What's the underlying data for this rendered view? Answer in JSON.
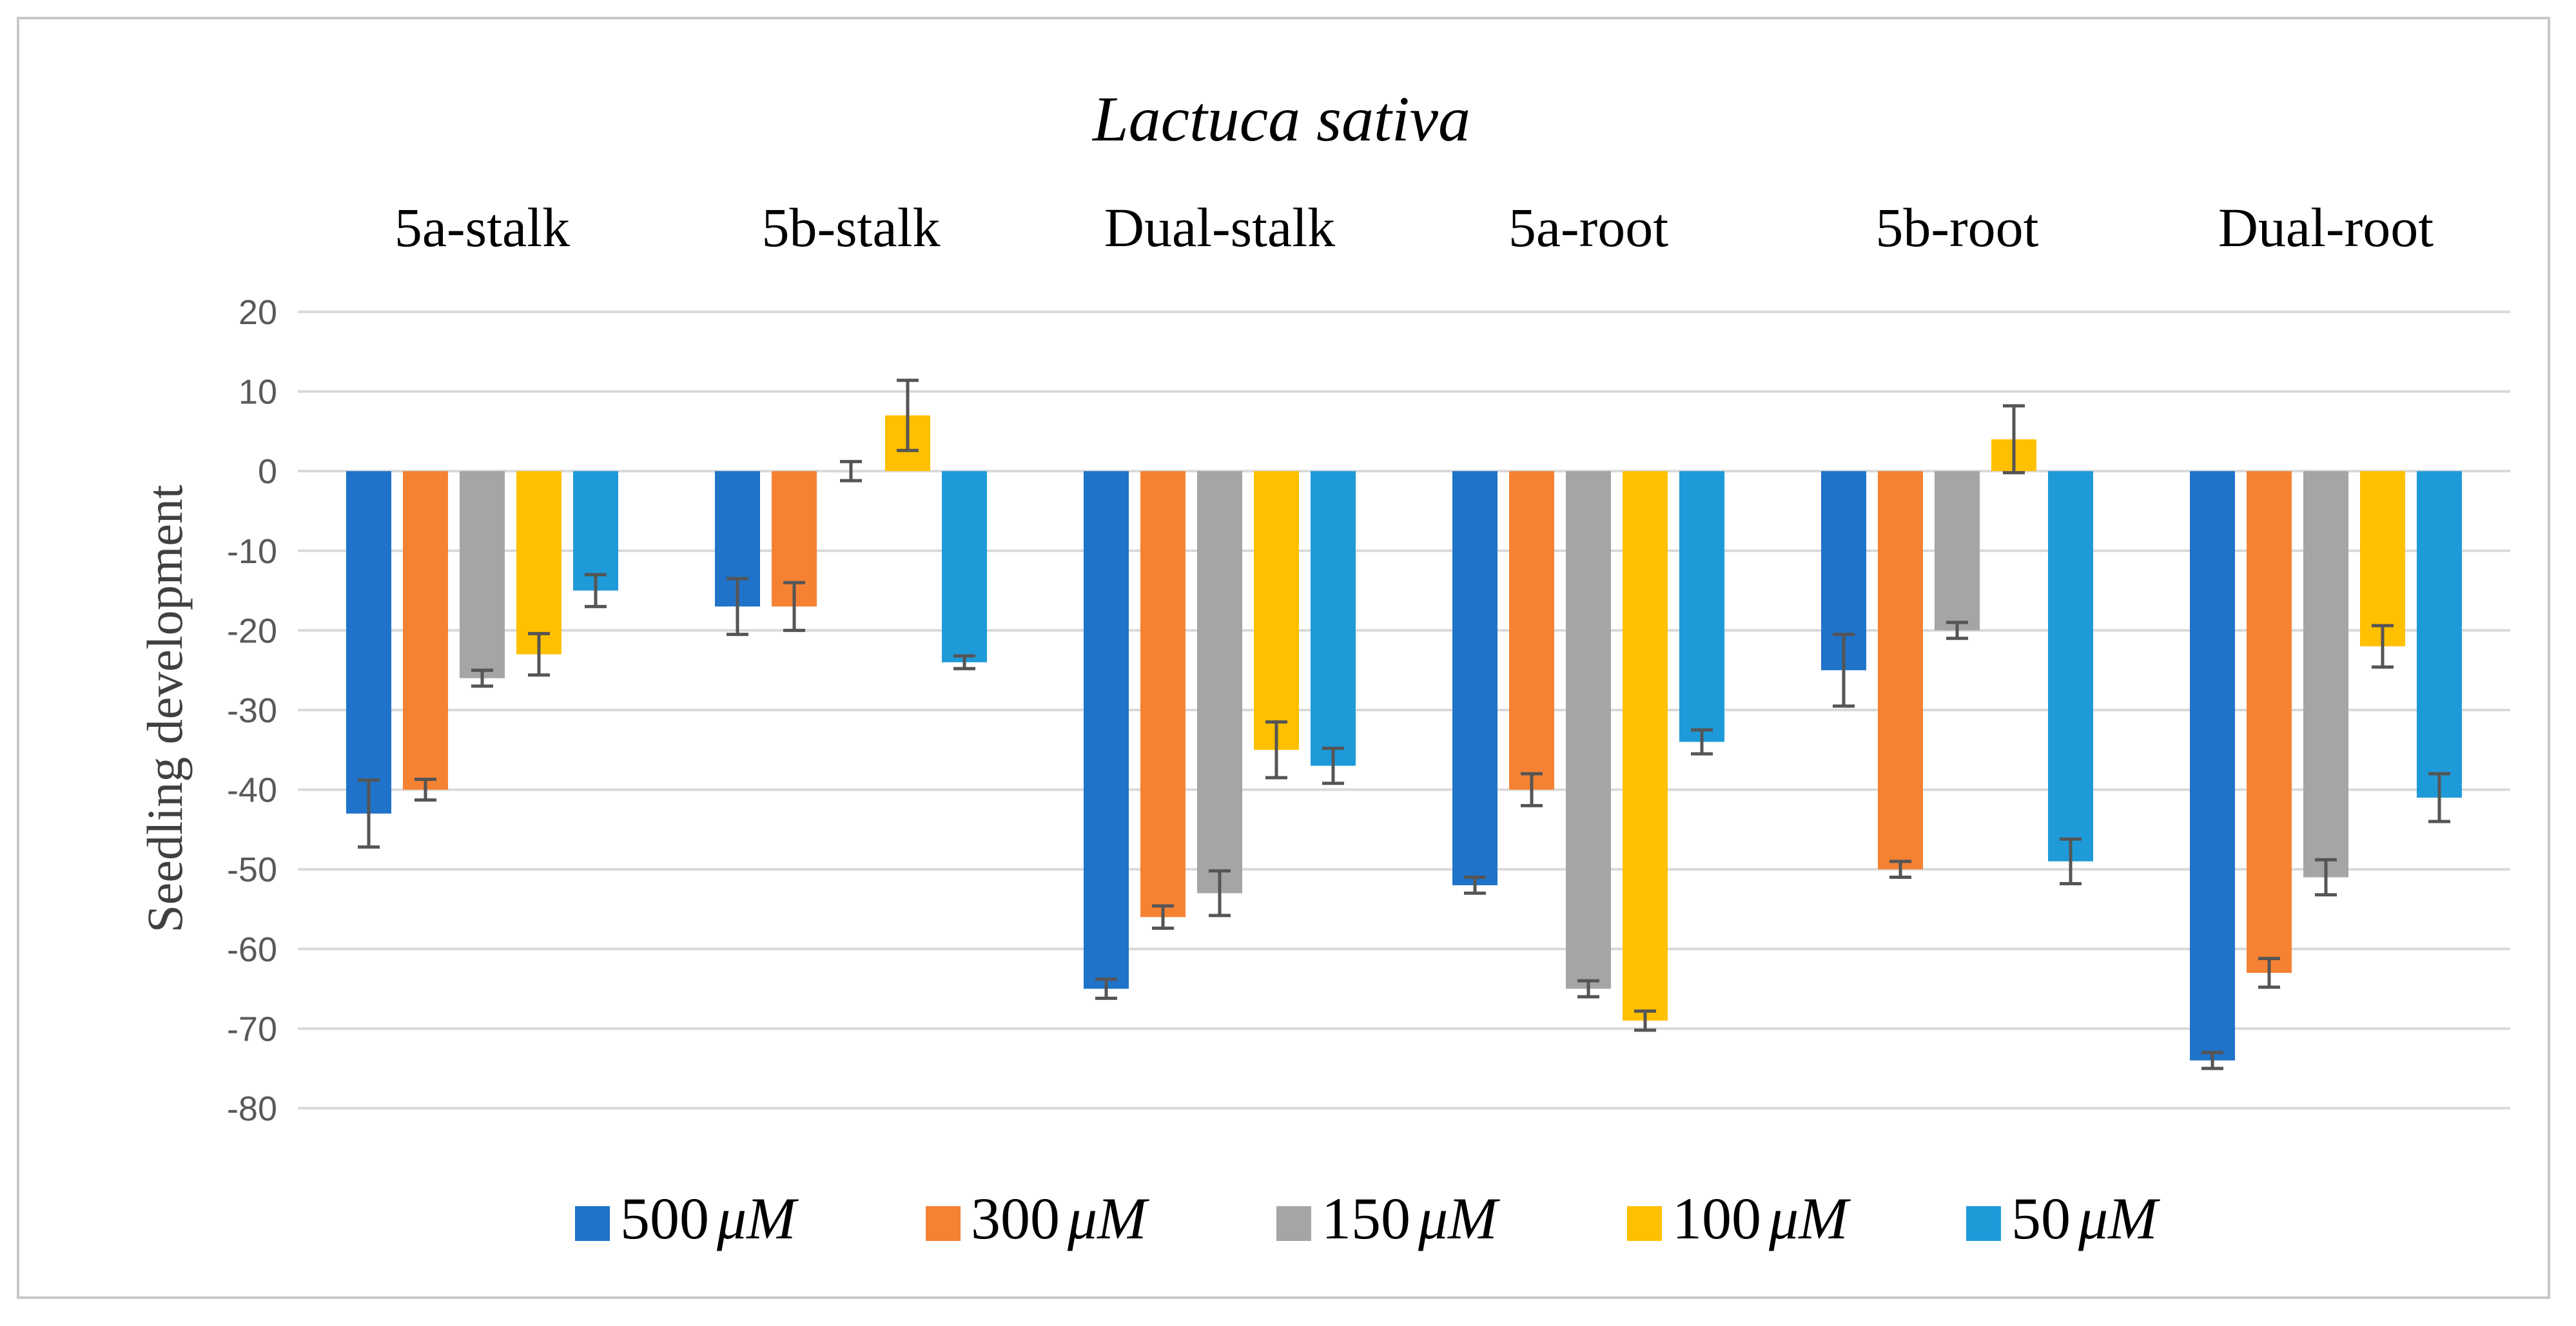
{
  "chart_data": {
    "type": "bar",
    "title": "Lactuca sativa",
    "xlabel": "",
    "ylabel": "Seedling development",
    "ylim": [
      -80,
      20
    ],
    "yticks": [
      20,
      10,
      0,
      -10,
      -20,
      -30,
      -40,
      -50,
      -60,
      -70,
      -80
    ],
    "grid": true,
    "legend_position": "bottom",
    "categories": [
      "5a-stalk",
      "5b-stalk",
      "Dual-stalk",
      "5a-root",
      "5b-root",
      "Dual-root"
    ],
    "series": [
      {
        "name": "500 μM",
        "legend_value": "500",
        "color": "#1f73c8",
        "values": [
          -43,
          -17,
          -65,
          -52,
          -25,
          -74
        ],
        "errors": [
          4.2,
          3.5,
          1.2,
          1.0,
          4.5,
          1.0
        ]
      },
      {
        "name": "300 μM",
        "legend_value": "300",
        "color": "#f58233",
        "values": [
          -40,
          -17,
          -56,
          -40,
          -50,
          -63
        ],
        "errors": [
          1.3,
          3.0,
          1.4,
          2.0,
          1.0,
          1.8
        ]
      },
      {
        "name": "150 μM",
        "legend_value": "150",
        "color": "#a5a5a5",
        "values": [
          -26,
          0,
          -53,
          -65,
          -20,
          -51
        ],
        "errors": [
          1.0,
          1.2,
          2.8,
          1.0,
          1.0,
          2.2
        ]
      },
      {
        "name": "100 μM",
        "legend_value": "100",
        "color": "#ffc000",
        "values": [
          -23,
          7,
          -35,
          -69,
          4,
          -22
        ],
        "errors": [
          2.6,
          4.4,
          3.5,
          1.2,
          4.2,
          2.6
        ]
      },
      {
        "name": "50 μM",
        "legend_value": "50",
        "color": "#1f9ad9",
        "values": [
          -15,
          -24,
          -37,
          -34,
          -49,
          -41
        ],
        "errors": [
          2.0,
          0.8,
          2.2,
          1.5,
          2.8,
          3.0
        ]
      }
    ],
    "legend_unit": "μM",
    "errorbar_color": "#555555",
    "grid_color": "#d9d9d9"
  }
}
